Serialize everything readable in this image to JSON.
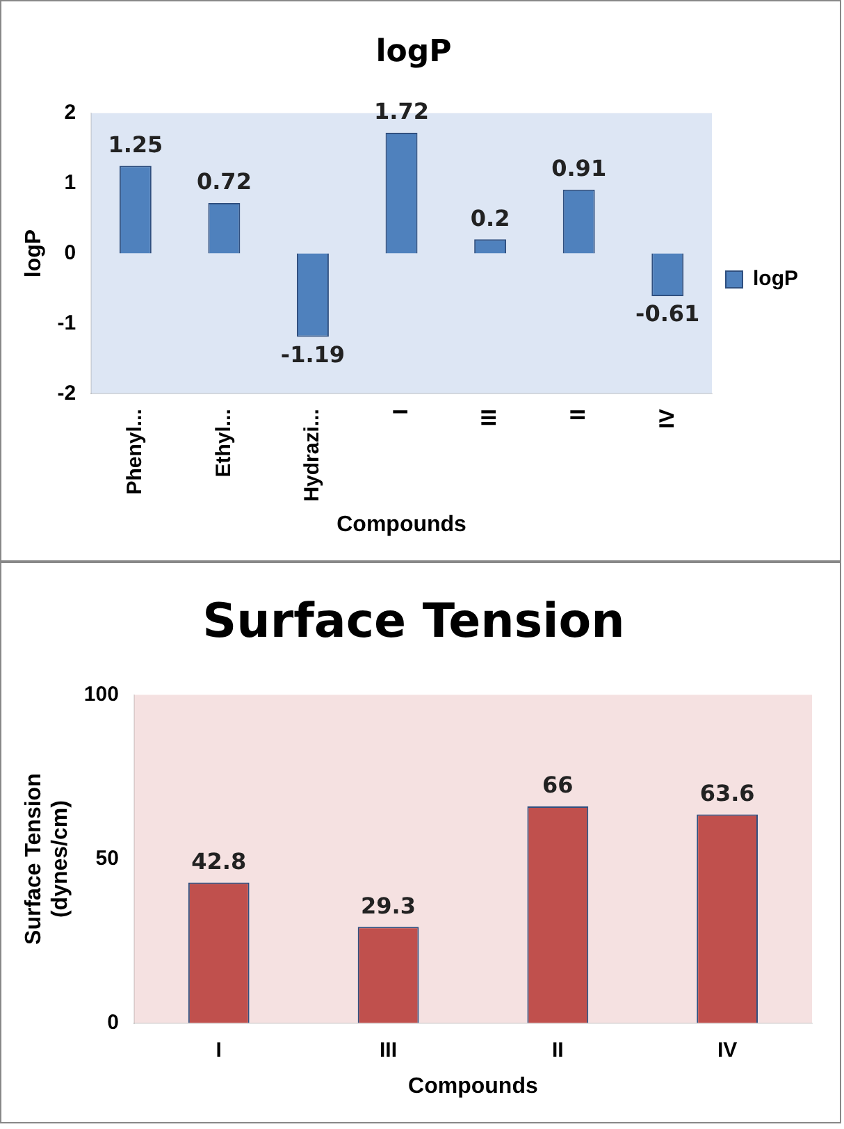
{
  "chart_data": [
    {
      "type": "bar",
      "title": "logP",
      "xlabel": "Compounds",
      "ylabel": "logP",
      "categories": [
        "Phenyl...",
        "Ethyl...",
        "Hydrazi...",
        "I",
        "III",
        "II",
        "IV"
      ],
      "series": [
        {
          "name": "logP",
          "color": "#4f81bd",
          "values": [
            1.25,
            0.72,
            -1.19,
            1.72,
            0.2,
            0.91,
            -0.61
          ]
        }
      ],
      "ylim": [
        -2,
        2
      ],
      "yticks": [
        -2,
        -1,
        0,
        1,
        2
      ],
      "grid": false,
      "legend": "right",
      "data_labels": true
    },
    {
      "type": "bar",
      "title": "Surface Tension",
      "xlabel": "Compounds",
      "ylabel": "Surface Tension (dynes/cm)",
      "categories": [
        "I",
        "III",
        "II",
        "IV"
      ],
      "series": [
        {
          "color": "#c0504d",
          "values": [
            42.8,
            29.3,
            66,
            63.6
          ]
        }
      ],
      "ylim": [
        0,
        100
      ],
      "yticks": [
        0,
        50,
        100
      ],
      "grid": false,
      "legend": false,
      "data_labels": true
    }
  ]
}
